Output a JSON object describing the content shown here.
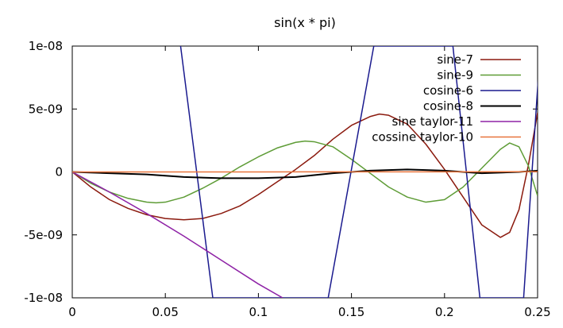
{
  "chart_data": {
    "type": "line",
    "title": "sin(x * pi)",
    "xlabel": "",
    "ylabel": "",
    "xlim": [
      0,
      0.25
    ],
    "ylim": [
      -1e-08,
      1e-08
    ],
    "x_ticks": [
      0,
      0.05,
      0.1,
      0.15,
      0.2,
      0.25
    ],
    "x_tick_labels": [
      "0",
      "0.05",
      "0.1",
      "0.15",
      "0.2",
      "0.25"
    ],
    "y_ticks": [
      -1e-08,
      -5e-09,
      0,
      5e-09,
      1e-08
    ],
    "y_tick_labels": [
      "-1e-08",
      "-5e-09",
      "0",
      "5e-09",
      "1e-08"
    ],
    "grid": false,
    "legend_position": "top-right",
    "series": [
      {
        "name": "sine-7",
        "color": "#8b1a0e",
        "x": [
          0,
          0.01,
          0.02,
          0.03,
          0.04,
          0.05,
          0.06,
          0.07,
          0.08,
          0.09,
          0.1,
          0.11,
          0.12,
          0.13,
          0.14,
          0.15,
          0.16,
          0.165,
          0.17,
          0.18,
          0.19,
          0.2,
          0.21,
          0.22,
          0.23,
          0.235,
          0.24,
          0.245,
          0.25
        ],
        "y": [
          0,
          -1.2e-09,
          -2.2e-09,
          -2.9e-09,
          -3.4e-09,
          -3.7e-09,
          -3.8e-09,
          -3.7e-09,
          -3.3e-09,
          -2.7e-09,
          -1.8e-09,
          -8e-10,
          2e-10,
          1.3e-09,
          2.6e-09,
          3.7e-09,
          4.4e-09,
          4.6e-09,
          4.5e-09,
          3.8e-09,
          2.2e-09,
          2e-10,
          -2e-09,
          -4.2e-09,
          -5.2e-09,
          -4.8e-09,
          -3e-09,
          5e-10,
          4.7e-09
        ]
      },
      {
        "name": "sine-9",
        "color": "#5e9c36",
        "x": [
          0,
          0.01,
          0.02,
          0.03,
          0.04,
          0.045,
          0.05,
          0.06,
          0.07,
          0.08,
          0.09,
          0.1,
          0.11,
          0.12,
          0.125,
          0.13,
          0.14,
          0.15,
          0.16,
          0.17,
          0.18,
          0.19,
          0.2,
          0.21,
          0.22,
          0.23,
          0.235,
          0.24,
          0.245,
          0.25
        ],
        "y": [
          0,
          -9e-10,
          -1.6e-09,
          -2.1e-09,
          -2.4e-09,
          -2.45e-09,
          -2.4e-09,
          -2e-09,
          -1.3e-09,
          -5e-10,
          4e-10,
          1.2e-09,
          1.9e-09,
          2.35e-09,
          2.45e-09,
          2.4e-09,
          2e-09,
          1e-09,
          -1e-10,
          -1.2e-09,
          -2e-09,
          -2.4e-09,
          -2.2e-09,
          -1.2e-09,
          3e-10,
          1.8e-09,
          2.3e-09,
          2e-09,
          5e-10,
          -1.9e-09
        ]
      },
      {
        "name": "cosine-6",
        "color": "#1a1a8e",
        "x": [
          0.0582,
          0.0755,
          0.1375,
          0.162,
          0.2045,
          0.219,
          0.2425,
          0.2515
        ],
        "y": [
          1e-08,
          -1e-08,
          -1e-08,
          1e-08,
          1e-08,
          -1e-08,
          -1e-08,
          1e-08
        ]
      },
      {
        "name": "cosine-8",
        "color": "#000000",
        "x": [
          0,
          0.02,
          0.04,
          0.06,
          0.08,
          0.1,
          0.12,
          0.14,
          0.16,
          0.18,
          0.2,
          0.22,
          0.24,
          0.25
        ],
        "y": [
          0,
          -1e-10,
          -2e-10,
          -4e-10,
          -5e-10,
          -5e-10,
          -4e-10,
          -1e-10,
          1e-10,
          2e-10,
          1e-10,
          -1e-10,
          0,
          1e-10
        ]
      },
      {
        "name": "sine taylor-11",
        "color": "#8e22a6",
        "x": [
          0,
          0.02,
          0.04,
          0.06,
          0.08,
          0.1,
          0.113
        ],
        "y": [
          0,
          -1.6e-09,
          -3.3e-09,
          -5.1e-09,
          -7e-09,
          -8.9e-09,
          -1e-08
        ]
      },
      {
        "name": "cossine taylor-10",
        "color": "#e8743c",
        "x": [
          0,
          0.05,
          0.1,
          0.15,
          0.2,
          0.25
        ],
        "y": [
          0,
          0,
          0,
          1e-11,
          1e-11,
          2e-11
        ]
      }
    ]
  }
}
